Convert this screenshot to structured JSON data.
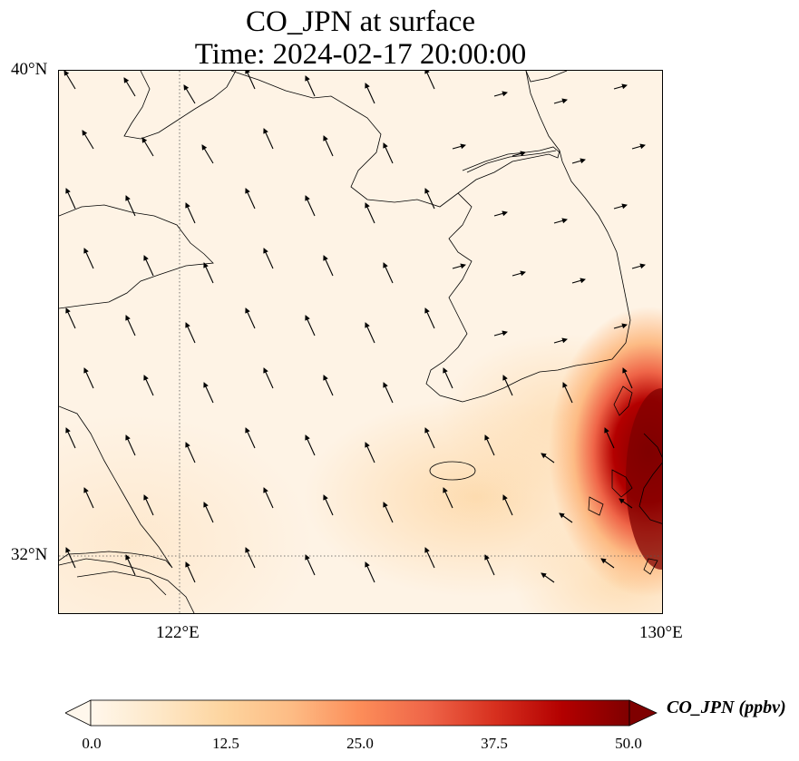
{
  "title": {
    "line1": "CO_JPN at surface",
    "line2": "Time: 2024-02-17 20:00:00"
  },
  "axes": {
    "lat_ticks": [
      "40°N",
      "32°N"
    ],
    "lon_ticks": [
      "122°E",
      "130°E"
    ],
    "lat_range": [
      31,
      40
    ],
    "lon_range": [
      120,
      130
    ],
    "gridlines": "dotted"
  },
  "colorbar": {
    "label": "CO_JPN (ppbv)",
    "ticks": [
      "0.0",
      "12.5",
      "25.0",
      "37.5",
      "50.0"
    ],
    "range": [
      0,
      50
    ],
    "extend": "both",
    "colormap": "OrRd",
    "colors": [
      "#fff7ec",
      "#fee8c8",
      "#fdd49e",
      "#fdbb84",
      "#fc8d59",
      "#ef6548",
      "#d7301f",
      "#b30000",
      "#7f0000"
    ]
  },
  "field": {
    "description_hotspot_lon_lat": [
      129.8,
      34.6
    ],
    "hotspot_max_ppbv": 50
  }
}
